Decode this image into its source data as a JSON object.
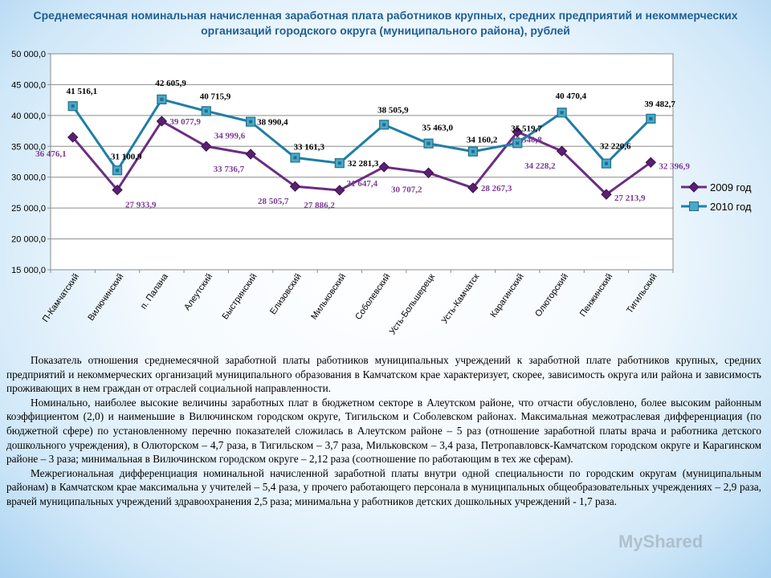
{
  "chart_data": {
    "type": "line",
    "title": "Среднемесячная номинальная начисленная заработная плата работников крупных, средних предприятий и некоммерческих организаций городского округа (муниципального района), рублей",
    "categories": [
      "П-Камчатский",
      "Вилючинский",
      "п. Палана",
      "Алеутский",
      "Быстринский",
      "Елизовский",
      "Мильковский",
      "Соболевский",
      "Усть-Большерецк",
      "Усть-Камчатск",
      "Карагинский",
      "Олюторский",
      "Пенжинский",
      "Тигильский"
    ],
    "ylim": [
      15000,
      50000
    ],
    "yticks": [
      "15 000,0",
      "20 000,0",
      "25 000,0",
      "30 000,0",
      "35 000,0",
      "40 000,0",
      "45 000,0",
      "50 000,0"
    ],
    "legend_position": "right",
    "grid": "horizontal",
    "series": [
      {
        "name": "2009 год",
        "color": "#6b2d83",
        "marker": "diamond",
        "values": [
          36476.1,
          27933.9,
          39077.9,
          34999.6,
          33736.7,
          28505.7,
          27886.2,
          31647.4,
          30707.2,
          28267.3,
          37340.8,
          34228.2,
          27213.9,
          32396.9
        ],
        "labels": [
          "36 476,1",
          "27 933,9",
          "39 077,9",
          "34 999,6",
          "33 736,7",
          "28 505,7",
          "27 886,2",
          "31 647,4",
          "30 707,2",
          "28 267,3",
          "37 340,8",
          "34 228,2",
          "27 213,9",
          "32 396,9"
        ]
      },
      {
        "name": "2010 год",
        "color": "#1f7ea6",
        "marker": "square",
        "values": [
          41516.1,
          31100.9,
          42605.9,
          40715.9,
          38990.4,
          33161.3,
          32281.3,
          38505.9,
          35463.0,
          34160.2,
          35519.7,
          40470.4,
          32220.6,
          39482.7
        ],
        "labels": [
          "41 516,1",
          "31 100,9",
          "42 605,9",
          "40 715,9",
          "38 990,4",
          "33 161,3",
          "32 281,3",
          "38 505,9",
          "35 463,0",
          "34 160,2",
          "35 519,7",
          "40 470,4",
          "32 220,6",
          "39 482,7"
        ]
      }
    ]
  },
  "paragraphs": [
    "Показатель отношения среднемесячной заработной платы работников муниципальных учреждений к заработной плате работников крупных, средних предприятий и некоммерческих организаций муниципального образования в Камчатском крае характеризует, скорее, зависимость округа или района и зависимость проживающих в нем граждан от отраслей социальной направленности.",
    "Номинально, наиболее высокие величины заработных плат в бюджетном секторе в Алеутском районе, что отчасти обусловлено, более высоким районным коэффициентом (2,0) и наименьшие в Вилючинском городском округе, Тигильском и Соболевском районах. Максимальная межотраслевая дифференциация (по бюджетной сфере) по установленному перечню показателей сложилась в Алеутском районе – 5 раз (отношение заработной платы врача и работника детского дошкольного учреждения), в Олюторском – 4,7 раза, в Тигильском – 3,7 раза, Мильковском – 3,4 раза, Петропавловск-Камчатском городском округе и Карагинском районе – 3 раза; минимальная в Вилючинском городском округе – 2,12 раза (соотношение по работающим в тех же сферам).",
    "Межрегиональная дифференциация номинальной начисленной заработной платы внутри одной специальности по городским округам (муниципальным районам) в Камчатском крае максимальна у учителей – 5,4 раза, у прочего работающего персонала в муниципальных общеобразовательных учреждениях – 2,9 раза, врачей муниципальных учреждений здравоохранения 2,5 раза; минимальна у работников детских дошкольных учреждений - 1,7 раза."
  ],
  "watermark": "MyShared"
}
